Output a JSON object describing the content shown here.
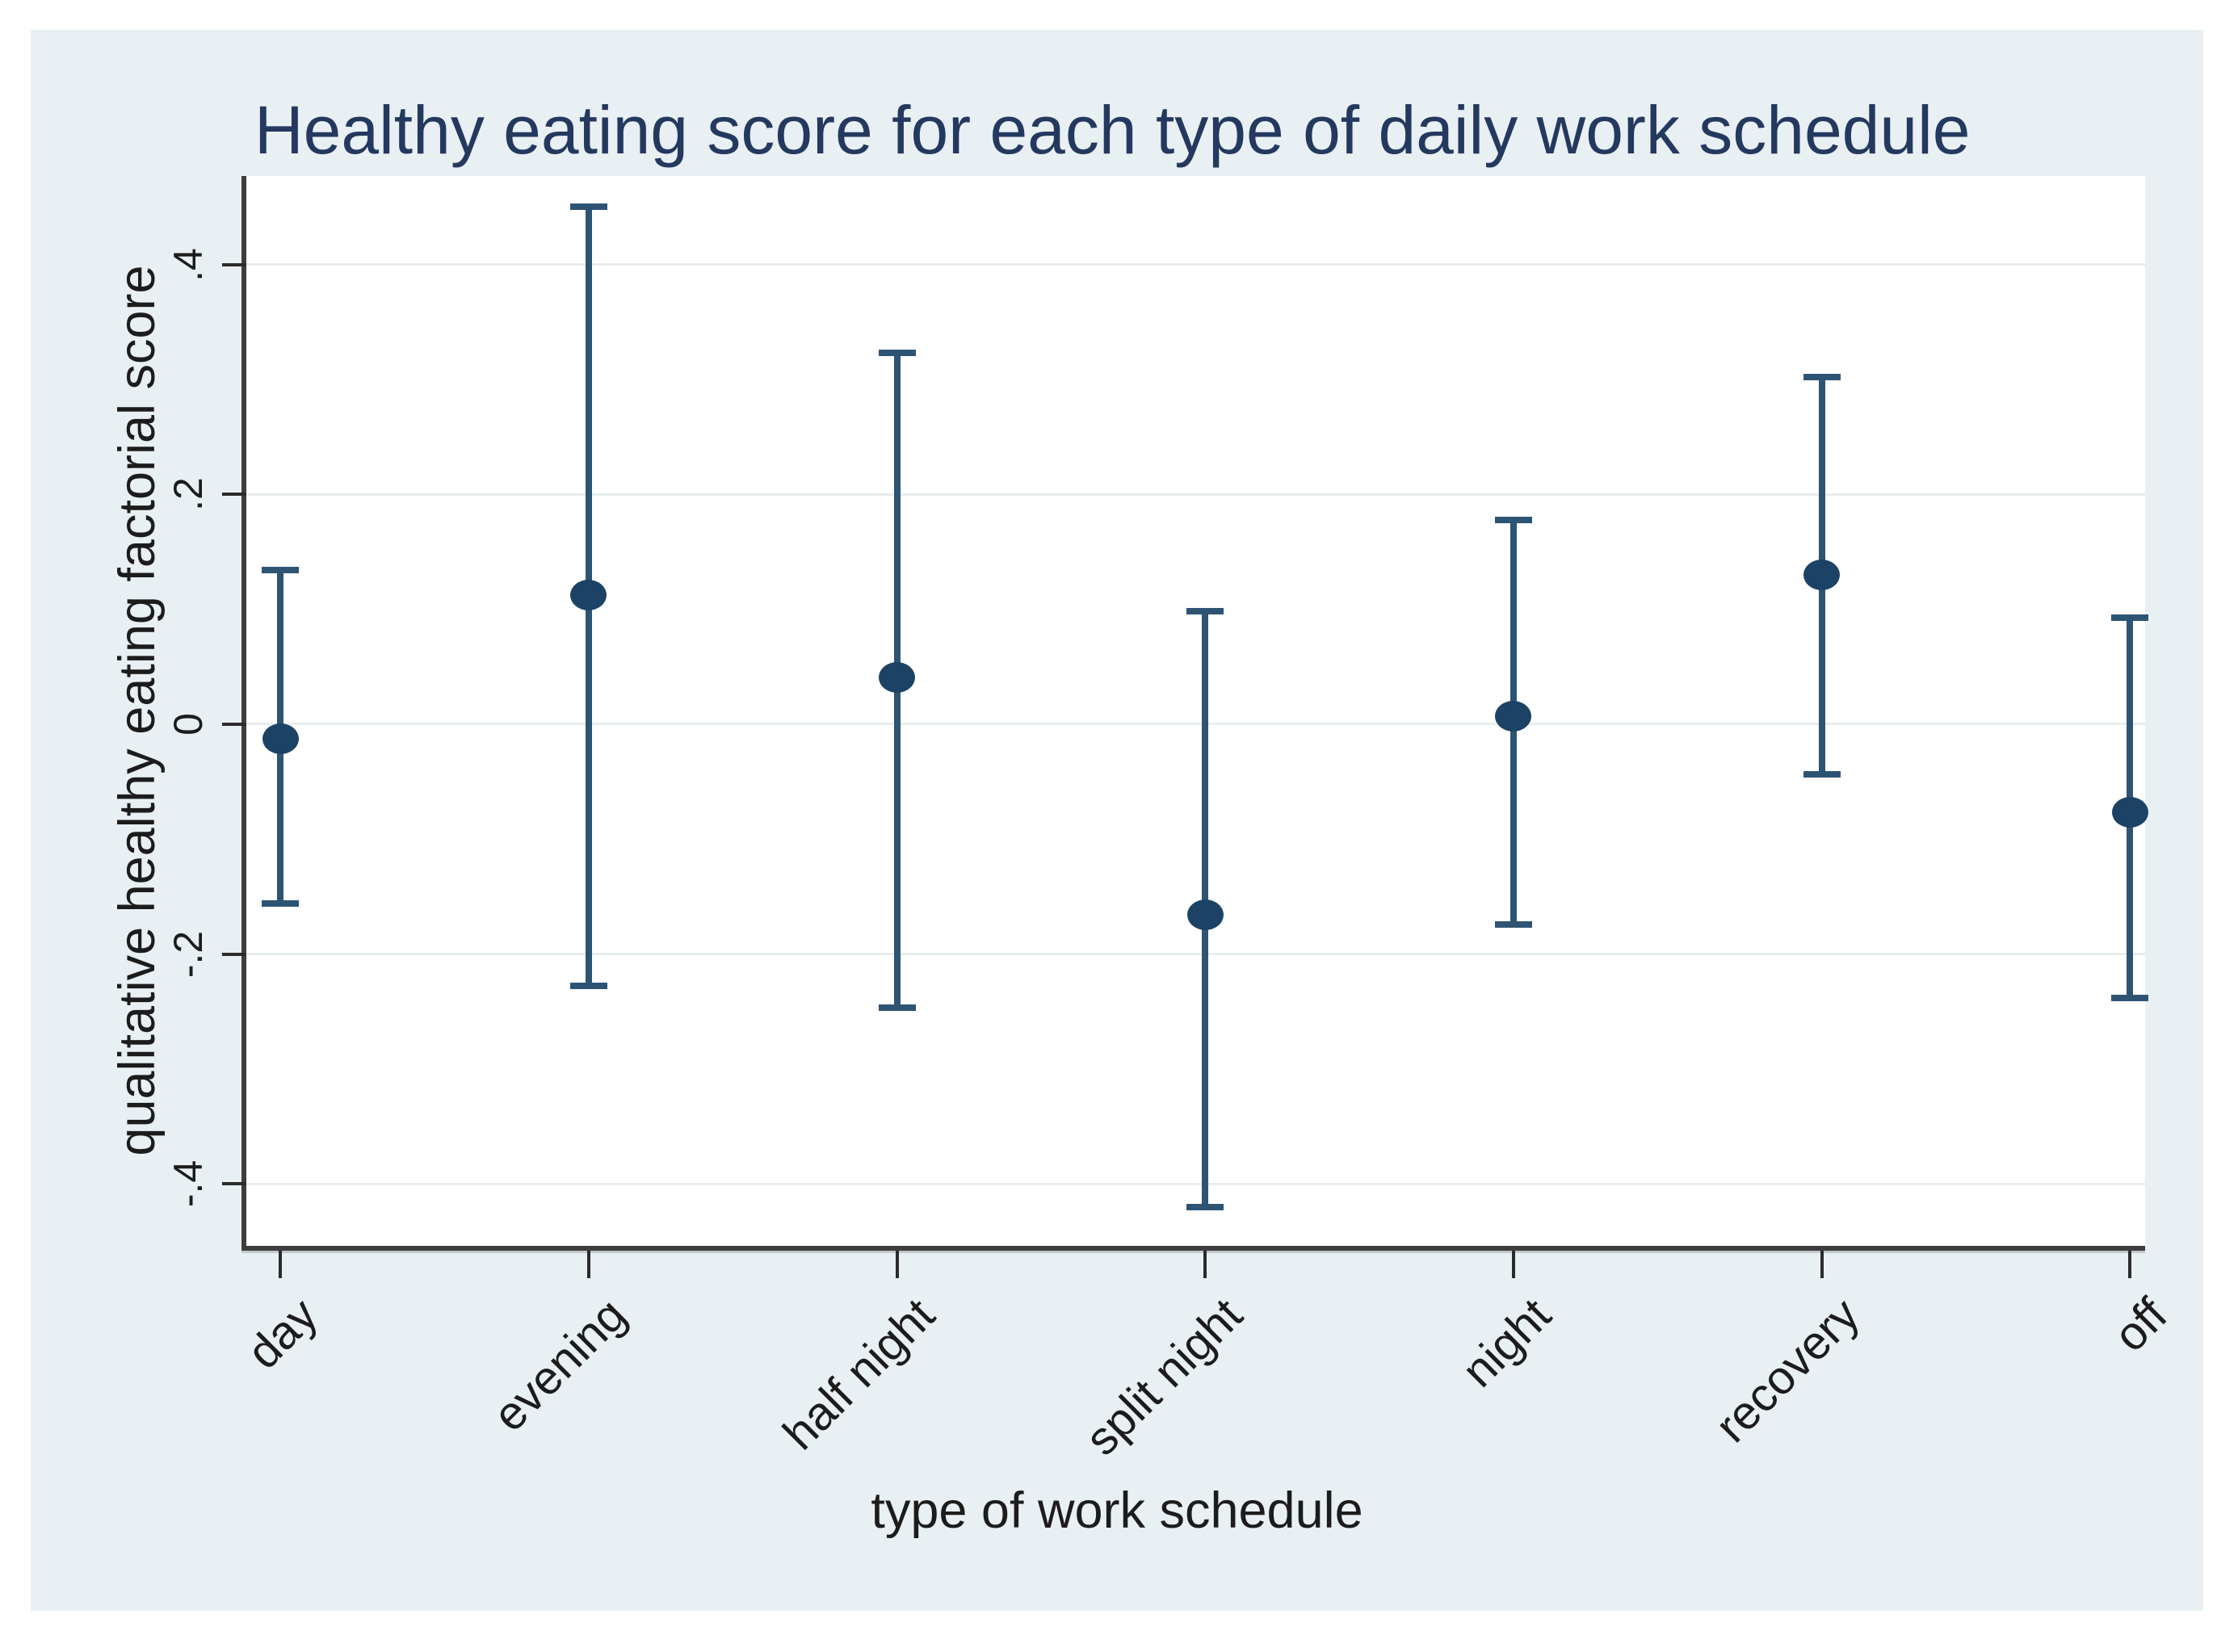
{
  "chart_data": {
    "type": "scatter",
    "error_bars": true,
    "title": "Healthy eating score for each type of daily work schedule",
    "xlabel": "type of work schedule",
    "ylabel": "qualitative healthy eating factorial score",
    "categories": [
      "day",
      "evening",
      "half night",
      "split night",
      "night",
      "recovery",
      "off"
    ],
    "series": [
      {
        "name": "healthy eating factorial score (point estimate with 95% CI)",
        "points": [
          {
            "category": "day",
            "estimate": -0.013,
            "ci_low": -0.156,
            "ci_high": 0.134
          },
          {
            "category": "evening",
            "estimate": 0.112,
            "ci_low": -0.228,
            "ci_high": 0.45
          },
          {
            "category": "half night",
            "estimate": 0.041,
            "ci_low": -0.247,
            "ci_high": 0.323
          },
          {
            "category": "split night",
            "estimate": -0.166,
            "ci_low": -0.42,
            "ci_high": 0.098
          },
          {
            "category": "night",
            "estimate": 0.007,
            "ci_low": -0.174,
            "ci_high": 0.178
          },
          {
            "category": "recovery",
            "estimate": 0.13,
            "ci_low": -0.044,
            "ci_high": 0.302
          },
          {
            "category": "off",
            "estimate": -0.077,
            "ci_low": -0.238,
            "ci_high": 0.093
          }
        ]
      }
    ],
    "ylim": [
      -0.454,
      0.477
    ],
    "yticks": [
      {
        "value": 0.4,
        "label": ".4"
      },
      {
        "value": 0.2,
        "label": ".2"
      },
      {
        "value": 0.0,
        "label": "0"
      },
      {
        "value": -0.2,
        "label": "-.2"
      },
      {
        "value": -0.4,
        "label": "-.4"
      }
    ],
    "grid": true,
    "legend": "none",
    "x_tick_label_angle_deg": 45,
    "y_tick_label_angle_deg": 90
  },
  "style": {
    "colors": {
      "panel": "#e9f0f3",
      "plotbg": "#ffffff",
      "grid": "#e8edee",
      "axis": "#3d3d3d",
      "tick": "#2b2b2b",
      "text": "#1c1c1c",
      "title": "#24395f",
      "marker": "#1c4265",
      "whisker": "#2e5474"
    }
  }
}
